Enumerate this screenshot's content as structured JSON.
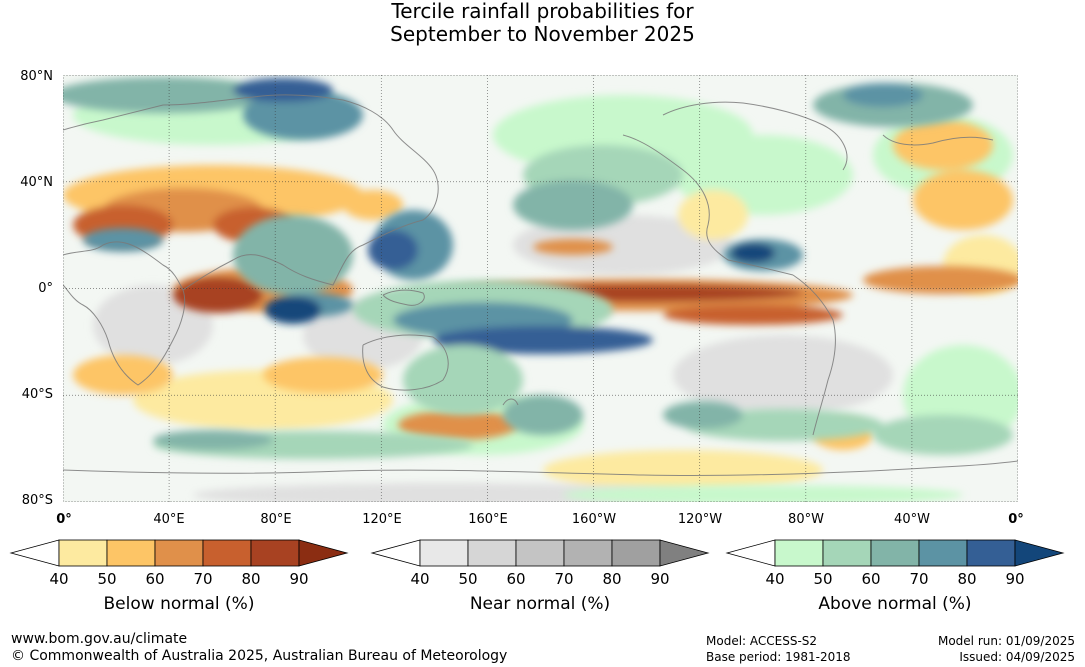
{
  "title": {
    "line1": "Tercile rainfall probabilities for",
    "line2": "September to November 2025"
  },
  "map": {
    "lat_labels": [
      "80°N",
      "40°N",
      "0°",
      "40°S",
      "80°S"
    ],
    "lon_labels": [
      "0°",
      "40°E",
      "80°E",
      "120°E",
      "160°E",
      "160°W",
      "120°W",
      "80°W",
      "40°W",
      "0°"
    ]
  },
  "colorbars": [
    {
      "name": "below",
      "title": "Below normal (%)",
      "ticks": [
        "40",
        "50",
        "60",
        "70",
        "80",
        "90"
      ],
      "colors": [
        "#ffffff",
        "#fdeaa0",
        "#fdc566",
        "#e0904a",
        "#c8602e",
        "#a84222",
        "#8b2d12"
      ]
    },
    {
      "name": "near",
      "title": "Near normal (%)",
      "ticks": [
        "40",
        "50",
        "60",
        "70",
        "80",
        "90"
      ],
      "colors": [
        "#ffffff",
        "#e8e8e8",
        "#d6d6d6",
        "#c4c4c4",
        "#b2b2b2",
        "#a0a0a0",
        "#808080"
      ]
    },
    {
      "name": "above",
      "title": "Above normal (%)",
      "ticks": [
        "40",
        "50",
        "60",
        "70",
        "80",
        "90"
      ],
      "colors": [
        "#ffffff",
        "#c8f8cc",
        "#a5d6b8",
        "#82b4a8",
        "#5c93a4",
        "#345f95",
        "#13467a"
      ]
    }
  ],
  "footer": {
    "url": "www.bom.gov.au/climate",
    "copyright": "© Commonwealth of Australia 2025, Australian Bureau of Meteorology",
    "model": "Model: ACCESS-S2",
    "base_period": "Base period: 1981-2018",
    "model_run": "Model run: 01/09/2025",
    "issued": "Issued: 04/09/2025"
  }
}
